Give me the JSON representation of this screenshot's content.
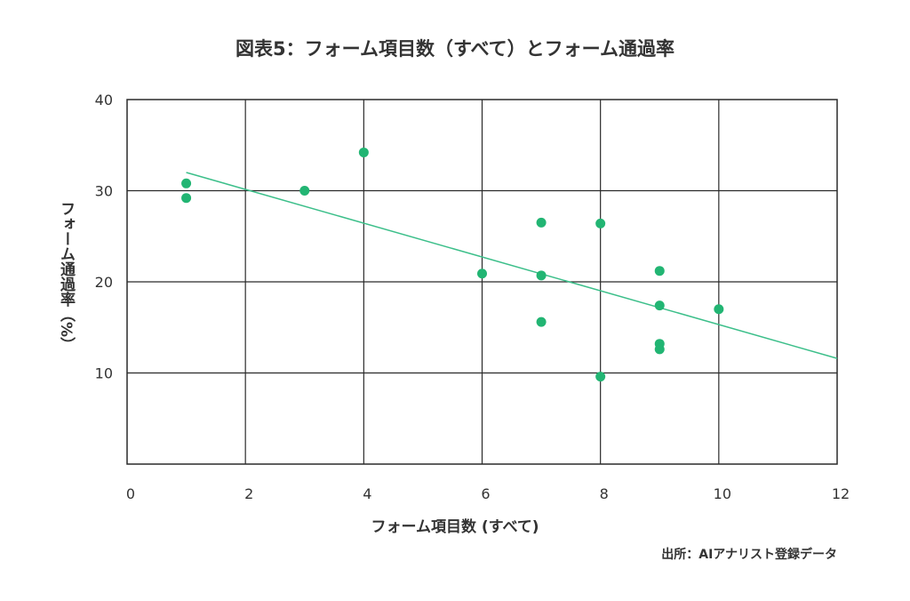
{
  "chart_data": {
    "type": "scatter",
    "title": "図表5：フォーム項目数（すべて）とフォーム通過率",
    "xlabel": "フォーム項目数 (すべて)",
    "ylabel": "フォーム通過率（%）",
    "xlim": [
      0,
      12
    ],
    "ylim": [
      0,
      40
    ],
    "x_ticks": [
      0,
      2,
      4,
      6,
      8,
      10,
      12
    ],
    "y_ticks": [
      10,
      20,
      30,
      40
    ],
    "grid": true,
    "point_color": "#22b573",
    "trendline_color": "#3cbf8a",
    "points": [
      {
        "x": 1,
        "y": 30.8
      },
      {
        "x": 1,
        "y": 29.2
      },
      {
        "x": 3,
        "y": 30.0
      },
      {
        "x": 4,
        "y": 34.2
      },
      {
        "x": 6,
        "y": 20.9
      },
      {
        "x": 7,
        "y": 26.5
      },
      {
        "x": 7,
        "y": 20.7
      },
      {
        "x": 7,
        "y": 15.6
      },
      {
        "x": 8,
        "y": 26.4
      },
      {
        "x": 8,
        "y": 9.6
      },
      {
        "x": 9,
        "y": 21.2
      },
      {
        "x": 9,
        "y": 17.4
      },
      {
        "x": 9,
        "y": 13.2
      },
      {
        "x": 9,
        "y": 12.6
      },
      {
        "x": 10,
        "y": 17.0
      }
    ],
    "trendline": [
      {
        "x": 1,
        "y": 32.0
      },
      {
        "x": 12,
        "y": 11.6
      }
    ]
  },
  "source": "出所：AIアナリスト登録データ"
}
